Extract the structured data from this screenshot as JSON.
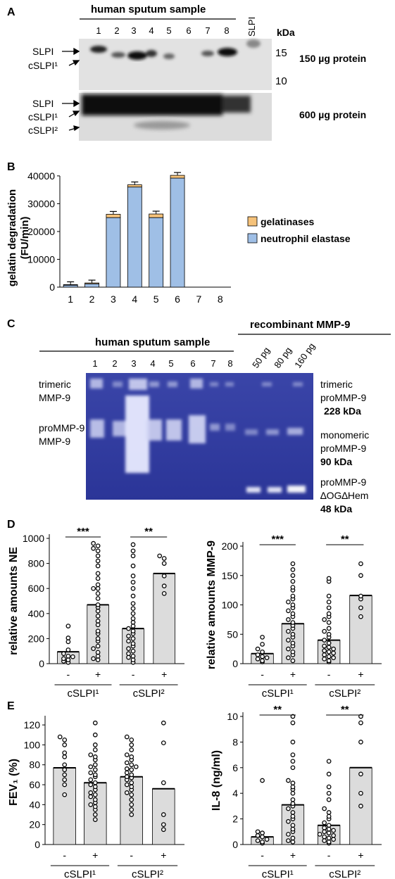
{
  "panelA": {
    "letter": "A",
    "header": "human sputum sample",
    "lanes": [
      "1",
      "2",
      "3",
      "4",
      "5",
      "6",
      "7",
      "8"
    ],
    "std_label": "SLPI",
    "kda_label": "kDa",
    "markers": [
      "15",
      "10"
    ],
    "blot1_bands": [
      "SLPI",
      "cSLPI¹"
    ],
    "blot2_bands": [
      "SLPI",
      "cSLPI¹",
      "cSLPI²"
    ],
    "blot1_note": "150 µg protein",
    "blot2_note": "600 µg protein"
  },
  "panelB": {
    "letter": "B",
    "legend": [
      "gelatinases",
      "neutrophil elastase"
    ],
    "colors": {
      "gelatinases": "#f5c27a",
      "neutrophil elastase": "#9fbfe6"
    },
    "chart_data": {
      "type": "bar",
      "stacked": true,
      "categories": [
        "1",
        "2",
        "3",
        "4",
        "5",
        "6",
        "7",
        "8"
      ],
      "series": [
        {
          "name": "neutrophil elastase",
          "values": [
            700,
            1200,
            25000,
            36000,
            25000,
            39200,
            0,
            0
          ]
        },
        {
          "name": "gelatinases",
          "values": [
            200,
            300,
            1200,
            800,
            1300,
            1000,
            0,
            0
          ]
        }
      ],
      "ylabel": "gelatin degradation\n(FU/min)",
      "yticks": [
        0,
        10000,
        20000,
        30000,
        40000
      ],
      "ylim": [
        0,
        42000
      ]
    }
  },
  "panelC": {
    "letter": "C",
    "header_sputum": "human sputum sample",
    "header_recomb": "recombinant MMP-9",
    "lanes": [
      "1",
      "2",
      "3",
      "4",
      "5",
      "6",
      "7",
      "8"
    ],
    "recomb_lanes": [
      "50 pg",
      "80 pg",
      "160 pg"
    ],
    "left_labels": [
      "trimeric",
      "MMP-9",
      "proMMP-9",
      "MMP-9"
    ],
    "right_labels": [
      {
        "l1": "trimeric",
        "l2": "proMMP-9",
        "kda": "228 kDa"
      },
      {
        "l1": "monomeric",
        "l2": "proMMP-9",
        "kda": "90 kDa"
      },
      {
        "l1": "proMMP-9",
        "l2": "∆OG∆Hem",
        "kda": "48 kDa"
      }
    ]
  },
  "panelD": {
    "letter": "D",
    "left": {
      "chart_data": {
        "type": "bar",
        "ylabel": "relative amounts NE",
        "yticks": [
          0,
          200,
          400,
          600,
          800,
          1000
        ],
        "ylim": [
          0,
          1000
        ],
        "categories": [
          "-",
          "+",
          "-",
          "+"
        ],
        "groups": [
          "cSLPI¹",
          "cSLPI²"
        ],
        "means": [
          95,
          470,
          280,
          720
        ],
        "points": [
          [
            10,
            20,
            30,
            40,
            55,
            60,
            80,
            110,
            175,
            205,
            300
          ],
          [
            30,
            60,
            90,
            140,
            180,
            200,
            240,
            260,
            310,
            340,
            380,
            420,
            450,
            470,
            520,
            560,
            600,
            630,
            680,
            720,
            780,
            820,
            860,
            900,
            920,
            940,
            960,
            40,
            120,
            600
          ],
          [
            10,
            30,
            50,
            60,
            80,
            100,
            120,
            140,
            160,
            180,
            200,
            220,
            240,
            260,
            280,
            300,
            330,
            360,
            400,
            440,
            480,
            540,
            600,
            650,
            700,
            780,
            860,
            900,
            950
          ],
          [
            560,
            620,
            700,
            800,
            840,
            860
          ]
        ],
        "significance": [
          "***",
          "**"
        ]
      }
    },
    "right": {
      "chart_data": {
        "type": "bar",
        "ylabel": "relative amounts MMP-9",
        "yticks": [
          0,
          50,
          100,
          150,
          200
        ],
        "ylim": [
          0,
          200
        ],
        "categories": [
          "-",
          "+",
          "-",
          "+"
        ],
        "groups": [
          "cSLPI¹",
          "cSLPI²"
        ],
        "means": [
          17,
          68,
          40,
          116
        ],
        "points": [
          [
            3,
            5,
            8,
            10,
            12,
            15,
            20,
            25,
            33,
            45
          ],
          [
            5,
            10,
            15,
            20,
            25,
            30,
            40,
            45,
            50,
            55,
            60,
            65,
            70,
            75,
            80,
            85,
            90,
            100,
            105,
            110,
            115,
            125,
            130,
            140,
            150,
            160,
            170,
            35,
            95
          ],
          [
            3,
            5,
            8,
            10,
            12,
            15,
            18,
            20,
            22,
            25,
            28,
            30,
            35,
            40,
            45,
            50,
            55,
            60,
            70,
            75,
            80,
            85,
            95,
            105,
            115,
            140,
            145
          ],
          [
            80,
            95,
            110,
            115,
            150,
            170
          ]
        ],
        "significance": [
          "***",
          "**"
        ]
      }
    }
  },
  "panelE": {
    "letter": "E",
    "left": {
      "chart_data": {
        "type": "bar",
        "ylabel": "FEV₁ (%)",
        "yticks": [
          0,
          20,
          40,
          60,
          80,
          100,
          120
        ],
        "ylim": [
          0,
          125
        ],
        "categories": [
          "-",
          "+",
          "-",
          "+"
        ],
        "groups": [
          "cSLPI¹",
          "cSLPI²"
        ],
        "means": [
          77,
          62,
          68,
          56
        ],
        "points": [
          [
            50,
            60,
            65,
            70,
            75,
            80,
            88,
            92,
            100,
            105,
            108
          ],
          [
            25,
            30,
            35,
            40,
            42,
            45,
            50,
            52,
            55,
            58,
            60,
            62,
            65,
            68,
            70,
            72,
            75,
            78,
            80,
            85,
            88,
            90,
            95,
            100,
            110,
            122,
            38,
            48
          ],
          [
            30,
            35,
            40,
            45,
            50,
            55,
            58,
            60,
            62,
            65,
            67,
            70,
            72,
            75,
            78,
            80,
            82,
            85,
            88,
            90,
            95,
            100,
            105,
            108,
            52,
            68,
            76
          ],
          [
            15,
            20,
            30,
            62,
            102,
            122
          ]
        ]
      }
    },
    "right": {
      "chart_data": {
        "type": "bar",
        "ylabel": "IL-8 (ng/ml)",
        "yticks": [
          0,
          2,
          4,
          6,
          8,
          10
        ],
        "ylim": [
          0,
          10
        ],
        "categories": [
          "-",
          "+",
          "-",
          "+"
        ],
        "groups": [
          "cSLPI¹",
          "cSLPI²"
        ],
        "means": [
          0.6,
          3.1,
          1.5,
          6.0
        ],
        "points": [
          [
            0.1,
            0.2,
            0.3,
            0.4,
            0.6,
            0.7,
            0.9,
            1.0,
            5.0
          ],
          [
            0.2,
            0.5,
            0.8,
            1.0,
            1.2,
            1.5,
            2.0,
            2.2,
            2.5,
            2.8,
            3.0,
            3.2,
            3.5,
            4.0,
            4.3,
            4.5,
            4.8,
            5.0,
            6.0,
            6.5,
            7.0,
            8.0,
            9.5,
            10.0,
            0.3,
            1.8
          ],
          [
            0.1,
            0.2,
            0.3,
            0.4,
            0.5,
            0.6,
            0.7,
            0.8,
            0.9,
            1.0,
            1.1,
            1.2,
            1.3,
            1.5,
            1.7,
            2.0,
            2.2,
            2.5,
            2.8,
            3.5,
            4.0,
            4.5,
            5.5,
            6.5
          ],
          [
            3.0,
            4.0,
            5.5,
            8.0,
            9.5,
            10.0
          ]
        ],
        "significance": [
          "**",
          "**"
        ]
      }
    }
  }
}
